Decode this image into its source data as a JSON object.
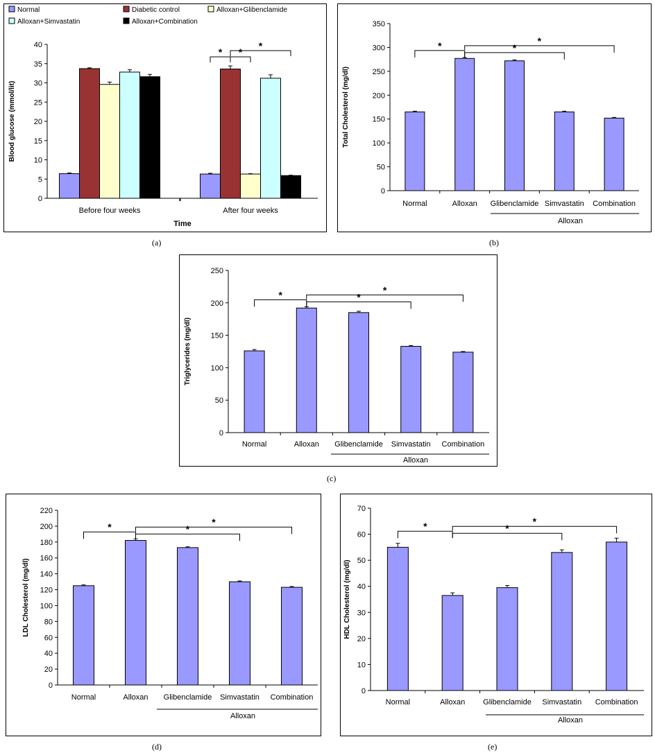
{
  "chart_data": [
    {
      "id": "a",
      "caption": "(a)",
      "type": "bar",
      "title": "",
      "xlabel": "Time",
      "ylabel": "Blood glucose (mmol/lit)",
      "ylim": [
        0,
        40
      ],
      "yticks": [
        "0",
        "5",
        "10",
        "15",
        "20",
        "25",
        "30",
        "35",
        "40"
      ],
      "categories": [
        "Before four weeks",
        "After four weeks"
      ],
      "legend_position": "top",
      "series": [
        {
          "name": "Normal",
          "color": "#9999ff",
          "values": [
            6.4,
            6.3
          ],
          "errors": [
            0.2,
            0.2
          ]
        },
        {
          "name": "Diabetic control",
          "color": "#993333",
          "values": [
            33.7,
            33.6
          ],
          "errors": [
            0.2,
            0.8
          ]
        },
        {
          "name": "Alloxan+Glibenclamide",
          "color": "#ffffcc",
          "values": [
            29.6,
            6.3
          ],
          "errors": [
            0.6,
            0.1
          ]
        },
        {
          "name": "Alloxan+Simvastatin",
          "color": "#ccffff",
          "values": [
            32.8,
            31.2
          ],
          "errors": [
            0.6,
            0.9
          ]
        },
        {
          "name": "Alloxan+Combination",
          "color": "#000000",
          "values": [
            31.6,
            5.9
          ],
          "errors": [
            0.6,
            0.1
          ]
        }
      ],
      "annotations": [
        {
          "label": "*",
          "group": 1,
          "from": 0,
          "to": 1
        },
        {
          "label": "*",
          "group": 1,
          "from": 1,
          "to": 2
        },
        {
          "label": "*",
          "group": 1,
          "from": 1,
          "to": 4
        }
      ]
    },
    {
      "id": "b",
      "caption": "(b)",
      "type": "bar",
      "title": "",
      "xlabel": "",
      "ylabel": "Total Cholesterol (mg/dl)",
      "ylim": [
        0,
        350
      ],
      "yticks": [
        "0",
        "50",
        "100",
        "150",
        "200",
        "250",
        "300",
        "350"
      ],
      "categories": [
        "Normal",
        "Alloxan",
        "Glibenclamide",
        "Simvastatin",
        "Combination"
      ],
      "group_label": "Alloxan",
      "series": [
        {
          "name": "",
          "color": "#9999ff",
          "values": [
            165,
            277,
            272,
            165,
            152
          ],
          "errors": [
            1.5,
            2,
            2,
            1.5,
            1.5
          ]
        }
      ],
      "annotations": [
        {
          "label": "*",
          "from": 0,
          "to": 1
        },
        {
          "label": "*",
          "from": 1,
          "to": 3
        },
        {
          "label": "*",
          "from": 1,
          "to": 4
        }
      ]
    },
    {
      "id": "c",
      "caption": "(c)",
      "type": "bar",
      "title": "",
      "xlabel": "",
      "ylabel": "Triglycerides (mg/dl)",
      "ylim": [
        0,
        250
      ],
      "yticks": [
        "0",
        "50",
        "100",
        "150",
        "200",
        "250"
      ],
      "categories": [
        "Normal",
        "Alloxan",
        "Glibenclamide",
        "Simvastatin",
        "Combination"
      ],
      "group_label": "Alloxan",
      "series": [
        {
          "name": "",
          "color": "#9999ff",
          "values": [
            126,
            192,
            185,
            133,
            124
          ],
          "errors": [
            2,
            2,
            2,
            1,
            1
          ]
        }
      ],
      "annotations": [
        {
          "label": "*",
          "from": 0,
          "to": 1
        },
        {
          "label": "*",
          "from": 1,
          "to": 3
        },
        {
          "label": "*",
          "from": 1,
          "to": 4
        }
      ]
    },
    {
      "id": "d",
      "caption": "(d)",
      "type": "bar",
      "title": "",
      "xlabel": "",
      "ylabel": "LDL Cholesterol (mg/dl)",
      "ylim": [
        0,
        220
      ],
      "yticks": [
        "0",
        "20",
        "40",
        "60",
        "80",
        "100",
        "120",
        "140",
        "160",
        "180",
        "200",
        "220"
      ],
      "categories": [
        "Normal",
        "Alloxan",
        "Glibenclamide",
        "Simvastatin",
        "Combination"
      ],
      "group_label": "Alloxan",
      "series": [
        {
          "name": "",
          "color": "#9999ff",
          "values": [
            125,
            182,
            173,
            130,
            123
          ],
          "errors": [
            1,
            2,
            1,
            1,
            1
          ]
        }
      ],
      "annotations": [
        {
          "label": "*",
          "from": 0,
          "to": 1
        },
        {
          "label": "*",
          "from": 1,
          "to": 3
        },
        {
          "label": "*",
          "from": 1,
          "to": 4
        }
      ]
    },
    {
      "id": "e",
      "caption": "(e)",
      "type": "bar",
      "title": "",
      "xlabel": "",
      "ylabel": "HDL Cholesterol (mg/dl)",
      "ylim": [
        0,
        70
      ],
      "yticks": [
        "0",
        "10",
        "20",
        "30",
        "40",
        "50",
        "60",
        "70"
      ],
      "categories": [
        "Normal",
        "Alloxan",
        "Glibenclamide",
        "Simvastatin",
        "Combination"
      ],
      "group_label": "Alloxan",
      "series": [
        {
          "name": "",
          "color": "#9999ff",
          "values": [
            55,
            36.5,
            39.5,
            53,
            57
          ],
          "errors": [
            1.5,
            1.0,
            0.8,
            1.0,
            1.5
          ]
        }
      ],
      "annotations": [
        {
          "label": "*",
          "from": 0,
          "to": 1
        },
        {
          "label": "*",
          "from": 1,
          "to": 3
        },
        {
          "label": "*",
          "from": 1,
          "to": 4
        }
      ]
    }
  ]
}
